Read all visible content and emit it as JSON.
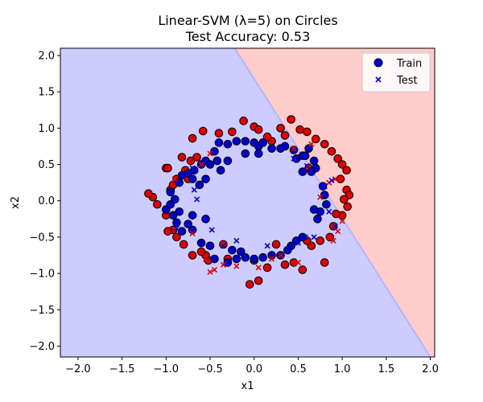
{
  "chart_data": {
    "type": "scatter",
    "title": "Linear-SVM (λ=5) on Circles",
    "subtitle": "Test Accuracy: 0.53",
    "xlabel": "x1",
    "ylabel": "x2",
    "xlim": [
      -2.2,
      2.05
    ],
    "ylim": [
      -2.15,
      2.1
    ],
    "xticks": [
      -2.0,
      -1.5,
      -1.0,
      -0.5,
      0.0,
      0.5,
      1.0,
      1.5,
      2.0
    ],
    "xtick_labels": [
      "−2.0",
      "−1.5",
      "−1.0",
      "−0.5",
      "0.0",
      "0.5",
      "1.0",
      "1.5",
      "2.0"
    ],
    "yticks": [
      -2.0,
      -1.5,
      -1.0,
      -0.5,
      0.0,
      0.5,
      1.0,
      1.5,
      2.0
    ],
    "ytick_labels": [
      "−2.0",
      "−1.5",
      "−1.0",
      "−0.5",
      "0.0",
      "0.5",
      "1.0",
      "1.5",
      "2.0"
    ],
    "decision_boundary": {
      "points": [
        [
          -0.22,
          2.1
        ],
        [
          2.0,
          -2.15
        ]
      ],
      "region_left_color": "#ccccff",
      "region_right_color": "#ffcccc",
      "boundary_color": "#b6b6ff"
    },
    "colors": {
      "class0": "#0000cc",
      "class1": "#dd0000"
    },
    "legend": {
      "position": "top-right",
      "entries": [
        {
          "label": "Train",
          "marker": "circle"
        },
        {
          "label": "Test",
          "marker": "x"
        }
      ]
    },
    "series": [
      {
        "name": "Train",
        "marker": "circle",
        "points": [
          [
            -0.82,
            0.6,
            1
          ],
          [
            -0.7,
            0.86,
            1
          ],
          [
            -0.58,
            0.96,
            1
          ],
          [
            -0.4,
            0.93,
            1
          ],
          [
            -0.25,
            0.95,
            1
          ],
          [
            -0.12,
            1.1,
            1
          ],
          [
            0.0,
            1.02,
            1
          ],
          [
            0.05,
            0.98,
            1
          ],
          [
            0.3,
            1.0,
            1
          ],
          [
            0.42,
            1.12,
            1
          ],
          [
            0.52,
            0.98,
            1
          ],
          [
            0.6,
            0.95,
            1
          ],
          [
            0.7,
            0.85,
            1
          ],
          [
            0.8,
            0.78,
            1
          ],
          [
            0.88,
            0.68,
            1
          ],
          [
            0.95,
            0.58,
            1
          ],
          [
            1.0,
            0.5,
            1
          ],
          [
            1.05,
            0.42,
            1
          ],
          [
            0.98,
            0.3,
            1
          ],
          [
            1.05,
            0.15,
            1
          ],
          [
            1.08,
            0.08,
            1
          ],
          [
            1.02,
            0.02,
            1
          ],
          [
            1.06,
            -0.08,
            1
          ],
          [
            1.0,
            -0.2,
            1
          ],
          [
            0.93,
            -0.18,
            1
          ],
          [
            0.9,
            -0.35,
            1
          ],
          [
            0.86,
            -0.5,
            1
          ],
          [
            0.75,
            -0.55,
            1
          ],
          [
            0.65,
            -0.62,
            1
          ],
          [
            0.8,
            -0.85,
            1
          ],
          [
            0.55,
            -0.95,
            1
          ],
          [
            0.45,
            -0.85,
            1
          ],
          [
            0.35,
            -0.88,
            1
          ],
          [
            0.15,
            -0.92,
            1
          ],
          [
            0.0,
            -0.82,
            1
          ],
          [
            0.05,
            -1.1,
            1
          ],
          [
            -0.05,
            -1.15,
            1
          ],
          [
            -0.3,
            -0.8,
            1
          ],
          [
            -0.52,
            -0.82,
            1
          ],
          [
            -0.55,
            -0.75,
            1
          ],
          [
            -0.6,
            -0.7,
            1
          ],
          [
            -0.7,
            -0.75,
            1
          ],
          [
            -0.8,
            -0.6,
            1
          ],
          [
            -0.88,
            -0.5,
            1
          ],
          [
            -0.92,
            -0.4,
            1
          ],
          [
            -0.98,
            -0.42,
            1
          ],
          [
            -1.0,
            -0.2,
            1
          ],
          [
            -1.1,
            -0.05,
            1
          ],
          [
            -1.15,
            0.05,
            1
          ],
          [
            -1.2,
            0.1,
            1
          ],
          [
            -0.95,
            0.15,
            1
          ],
          [
            -0.92,
            0.22,
            1
          ],
          [
            -1.0,
            0.45,
            1
          ],
          [
            -0.98,
            0.45,
            1
          ],
          [
            -0.88,
            0.3,
            1
          ],
          [
            -0.78,
            0.42,
            1
          ],
          [
            -0.72,
            0.55,
            1
          ],
          [
            -0.75,
            0.3,
            1
          ],
          [
            -0.65,
            0.6,
            1
          ],
          [
            -0.35,
            -0.6,
            1
          ],
          [
            0.2,
            0.82,
            1
          ],
          [
            0.15,
            0.88,
            1
          ],
          [
            0.35,
            0.9,
            1
          ],
          [
            0.25,
            -0.6,
            1
          ],
          [
            0.6,
            -0.55,
            1
          ],
          [
            0.62,
            0.45,
            1
          ],
          [
            -0.4,
            0.8,
            0
          ],
          [
            -0.45,
            0.68,
            0
          ],
          [
            -0.3,
            0.78,
            0
          ],
          [
            -0.2,
            0.82,
            0
          ],
          [
            -0.1,
            0.82,
            0
          ],
          [
            0.0,
            0.8,
            0
          ],
          [
            0.05,
            0.75,
            0
          ],
          [
            0.1,
            0.8,
            0
          ],
          [
            -0.1,
            0.65,
            0
          ],
          [
            0.05,
            0.65,
            0
          ],
          [
            0.2,
            0.72,
            0
          ],
          [
            0.35,
            0.75,
            0
          ],
          [
            0.45,
            0.7,
            0
          ],
          [
            0.48,
            0.58,
            0
          ],
          [
            0.55,
            0.62,
            0
          ],
          [
            0.62,
            0.72,
            0
          ],
          [
            0.68,
            0.55,
            0
          ],
          [
            0.7,
            0.45,
            0
          ],
          [
            0.65,
            0.4,
            0
          ],
          [
            0.55,
            0.4,
            0
          ],
          [
            0.78,
            0.2,
            0
          ],
          [
            0.8,
            0.08,
            0
          ],
          [
            0.82,
            -0.05,
            0
          ],
          [
            0.75,
            -0.15,
            0
          ],
          [
            0.68,
            -0.12,
            0
          ],
          [
            0.72,
            -0.25,
            0
          ],
          [
            0.55,
            -0.5,
            0
          ],
          [
            0.48,
            -0.55,
            0
          ],
          [
            0.42,
            -0.62,
            0
          ],
          [
            0.38,
            -0.68,
            0
          ],
          [
            0.3,
            -0.75,
            0
          ],
          [
            0.2,
            -0.75,
            0
          ],
          [
            0.1,
            -0.78,
            0
          ],
          [
            0.0,
            -0.8,
            0
          ],
          [
            -0.1,
            -0.78,
            0
          ],
          [
            -0.2,
            -0.8,
            0
          ],
          [
            -0.3,
            -0.85,
            0
          ],
          [
            -0.45,
            -0.8,
            0
          ],
          [
            -0.25,
            -0.68,
            0
          ],
          [
            -0.15,
            -0.7,
            0
          ],
          [
            -0.5,
            -0.62,
            0
          ],
          [
            -0.6,
            -0.58,
            0
          ],
          [
            -0.7,
            -0.4,
            0
          ],
          [
            -0.75,
            -0.32,
            0
          ],
          [
            -0.82,
            -0.42,
            0
          ],
          [
            -0.88,
            -0.3,
            0
          ],
          [
            -0.92,
            -0.2,
            0
          ],
          [
            -0.85,
            -0.15,
            0
          ],
          [
            -1.0,
            -0.12,
            0
          ],
          [
            -0.95,
            -0.05,
            0
          ],
          [
            -0.7,
            -0.2,
            0
          ],
          [
            -0.55,
            -0.25,
            0
          ],
          [
            -0.95,
            0.12,
            0
          ],
          [
            -0.9,
            0.02,
            0
          ],
          [
            -0.85,
            0.25,
            0
          ],
          [
            -0.82,
            0.35,
            0
          ],
          [
            -0.75,
            0.38,
            0
          ],
          [
            -0.7,
            0.3,
            0
          ],
          [
            -0.68,
            0.42,
            0
          ],
          [
            -0.6,
            0.5,
            0
          ],
          [
            -0.55,
            0.55,
            0
          ],
          [
            -0.5,
            0.5,
            0
          ],
          [
            -0.42,
            0.55,
            0
          ],
          [
            -0.38,
            0.42,
            0
          ],
          [
            -0.55,
            0.3,
            0
          ],
          [
            -0.62,
            0.22,
            0
          ],
          [
            -0.3,
            0.55,
            0
          ],
          [
            0.58,
            0.62,
            0
          ],
          [
            0.3,
            0.72,
            0
          ]
        ]
      },
      {
        "name": "Test",
        "marker": "x",
        "points": [
          [
            -0.9,
            0.3,
            1
          ],
          [
            -0.65,
            0.6,
            1
          ],
          [
            -0.6,
            0.5,
            1
          ],
          [
            -0.5,
            0.65,
            1
          ],
          [
            -0.55,
            -0.8,
            1
          ],
          [
            -0.45,
            -0.95,
            1
          ],
          [
            -0.5,
            -0.98,
            1
          ],
          [
            -0.35,
            -0.88,
            1
          ],
          [
            -0.2,
            -0.9,
            1
          ],
          [
            0.05,
            -0.92,
            1
          ],
          [
            0.2,
            -0.8,
            1
          ],
          [
            0.5,
            -0.85,
            1
          ],
          [
            0.3,
            -0.75,
            1
          ],
          [
            0.85,
            -0.5,
            1
          ],
          [
            0.95,
            -0.42,
            1
          ],
          [
            1.0,
            -0.28,
            1
          ],
          [
            0.9,
            -0.55,
            1
          ],
          [
            0.85,
            0.25,
            1
          ],
          [
            0.92,
            0.3,
            1
          ],
          [
            0.65,
            0.78,
            1
          ],
          [
            0.45,
            0.72,
            1
          ],
          [
            0.75,
            0.05,
            1
          ],
          [
            -0.7,
            -0.45,
            1
          ],
          [
            -0.7,
            0.45,
            0
          ],
          [
            -0.68,
            0.15,
            0
          ],
          [
            -0.65,
            0.02,
            0
          ],
          [
            -0.48,
            -0.4,
            0
          ],
          [
            -0.35,
            -0.62,
            0
          ],
          [
            -0.2,
            -0.55,
            0
          ],
          [
            -0.88,
            -0.38,
            0
          ],
          [
            0.15,
            -0.62,
            0
          ],
          [
            0.5,
            -0.58,
            0
          ],
          [
            0.58,
            -0.5,
            0
          ],
          [
            0.68,
            -0.5,
            0
          ],
          [
            0.85,
            -0.15,
            0
          ],
          [
            0.8,
            0.2,
            0
          ],
          [
            0.88,
            0.28,
            0
          ],
          [
            0.92,
            -0.35,
            0
          ],
          [
            0.6,
            0.48,
            0
          ],
          [
            0.45,
            0.58,
            0
          ]
        ]
      }
    ]
  }
}
